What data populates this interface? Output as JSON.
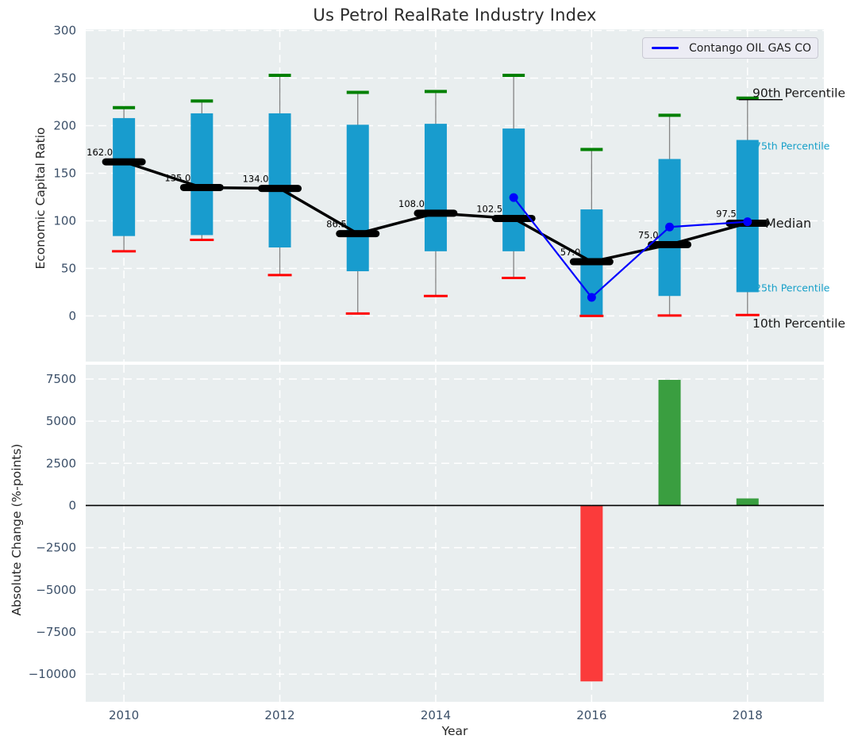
{
  "title": "Us Petrol RealRate Industry Index",
  "legend": {
    "label": "Contango OIL GAS CO"
  },
  "colors": {
    "plot_bg": "#e9eeef",
    "grid": "#ffffff",
    "box_fill": "#189cce",
    "whisker": "#848484",
    "cap_top": "#008000",
    "cap_bottom": "#ff0000",
    "median": "#000000",
    "company_line": "#0000ff",
    "bar_positive": "#3a9e40",
    "bar_negative": "#fb3b3b",
    "tick_label": "#3c5069",
    "annotation_black": "#1a1a1a",
    "annotation_cyan": "#17a0c9",
    "zero_line": "#000000"
  },
  "chart_data": [
    {
      "type": "boxplot+line",
      "title": "Us Petrol RealRate Industry Index",
      "ylabel": "Economic Capital Ratio",
      "xticks": [
        2010,
        2012,
        2014,
        2016,
        2018
      ],
      "yticks": [
        0,
        50,
        100,
        150,
        200,
        250,
        300
      ],
      "ylim": [
        -48,
        301
      ],
      "xlim": [
        2009.51,
        2018.98
      ],
      "legend_position": "upper right",
      "grid": true,
      "boxes": [
        {
          "year": 2010,
          "p10": 68,
          "p25": 84,
          "median": 162.0,
          "p75": 208,
          "p90": 219,
          "label": "162.0"
        },
        {
          "year": 2011,
          "p10": 80,
          "p25": 85,
          "median": 135.0,
          "p75": 213,
          "p90": 226,
          "label": "135.0"
        },
        {
          "year": 2012,
          "p10": 43,
          "p25": 72,
          "median": 134.0,
          "p75": 213,
          "p90": 253,
          "label": "134.0"
        },
        {
          "year": 2013,
          "p10": 2.5,
          "p25": 47,
          "median": 86.5,
          "p75": 201,
          "p90": 235,
          "label": "86.5"
        },
        {
          "year": 2014,
          "p10": 21,
          "p25": 68,
          "median": 108.0,
          "p75": 202,
          "p90": 236,
          "label": "108.0"
        },
        {
          "year": 2015,
          "p10": 40,
          "p25": 68,
          "median": 102.5,
          "p75": 197,
          "p90": 253,
          "label": "102.5"
        },
        {
          "year": 2016,
          "p10": 0,
          "p25": 1,
          "median": 57.0,
          "p75": 112,
          "p90": 175,
          "label": "57.0"
        },
        {
          "year": 2017,
          "p10": 0.5,
          "p25": 21,
          "median": 75.0,
          "p75": 165,
          "p90": 211,
          "label": "75.0"
        },
        {
          "year": 2018,
          "p10": 1,
          "p25": 25,
          "median": 97.5,
          "p75": 185,
          "p90": 229,
          "label": "97.5"
        }
      ],
      "line": {
        "name": "Contango OIL GAS CO",
        "points": [
          {
            "year": 2015,
            "value": 124.5
          },
          {
            "year": 2016,
            "value": 19.5
          },
          {
            "year": 2017,
            "value": 93.5
          },
          {
            "year": 2018,
            "value": 99.0
          }
        ]
      },
      "annotations": [
        {
          "text": "90th Percentile",
          "style": "black",
          "anchor": "p90"
        },
        {
          "text": "75th Percentile",
          "style": "cyan",
          "anchor": "p75"
        },
        {
          "text": "Median",
          "style": "black",
          "anchor": "median"
        },
        {
          "text": "25th Percentile",
          "style": "cyan",
          "anchor": "p25"
        },
        {
          "text": "10th Percentile",
          "style": "black",
          "anchor": "p10"
        }
      ]
    },
    {
      "type": "bar",
      "ylabel": "Absolute Change (%-points)",
      "xlabel": "Year",
      "xticks": [
        2010,
        2012,
        2014,
        2016,
        2018
      ],
      "yticks": [
        7500,
        5000,
        2500,
        0,
        -2500,
        -5000,
        -7500,
        -10000
      ],
      "ylim": [
        -11640,
        8345
      ],
      "grid": true,
      "bars": [
        {
          "year": 2016,
          "value": -10430,
          "direction": "negative"
        },
        {
          "year": 2017,
          "value": 7450,
          "direction": "positive"
        },
        {
          "year": 2018,
          "value": 420,
          "direction": "positive"
        }
      ]
    }
  ]
}
